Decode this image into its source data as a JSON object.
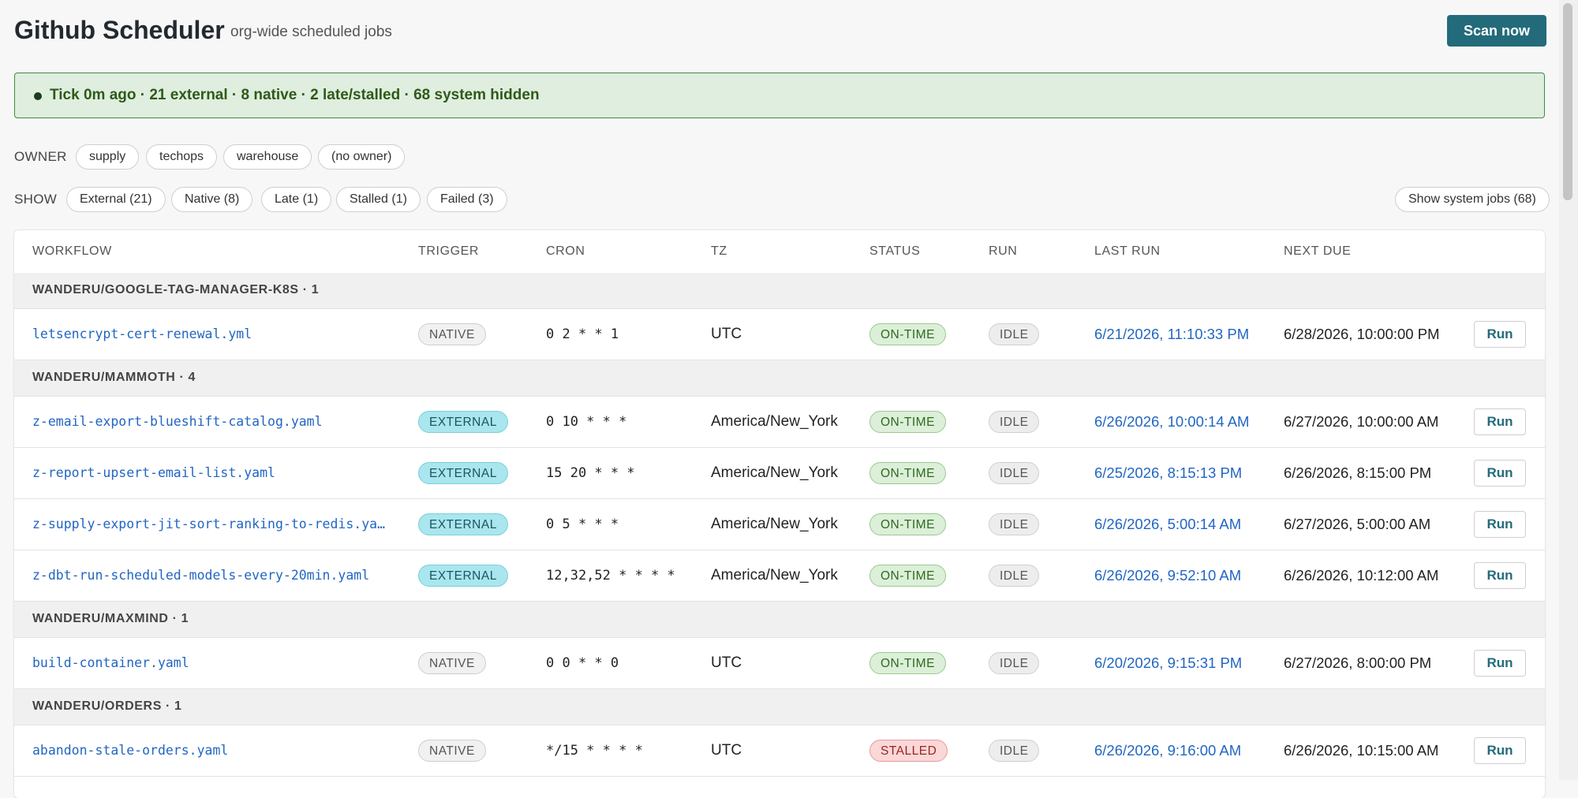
{
  "header": {
    "title": "Github Scheduler",
    "subtitle": "org-wide scheduled jobs",
    "scan_label": "Scan now"
  },
  "banner": {
    "text": "Tick 0m ago · 21 external · 8 native · 2 late/stalled · 68 system hidden",
    "color": "#3f8c3f"
  },
  "filters": {
    "owner_label": "OWNER",
    "owners": [
      "supply",
      "techops",
      "warehouse",
      "(no owner)"
    ],
    "show_label": "SHOW",
    "show": [
      "External (21)",
      "Native (8)",
      "Late (1)",
      "Stalled (1)",
      "Failed (3)"
    ],
    "system_jobs_label": "Show system jobs (68)"
  },
  "table": {
    "columns": [
      "WORKFLOW",
      "TRIGGER",
      "CRON",
      "TZ",
      "STATUS",
      "RUN",
      "LAST RUN",
      "NEXT DUE"
    ],
    "run_label": "Run",
    "groups": [
      {
        "label": "WANDERU/GOOGLE-TAG-MANAGER-K8S · 1",
        "rows": [
          {
            "workflow": "letsencrypt-cert-renewal.yml",
            "trigger": "NATIVE",
            "cron": "0 2 * * 1",
            "tz": "UTC",
            "status": "ON-TIME",
            "run": "IDLE",
            "last_run": "6/21/2026, 11:10:33 PM",
            "next_due": "6/28/2026, 10:00:00 PM"
          }
        ]
      },
      {
        "label": "WANDERU/MAMMOTH · 4",
        "rows": [
          {
            "workflow": "z-email-export-blueshift-catalog.yaml",
            "trigger": "EXTERNAL",
            "cron": "0 10 * * *",
            "tz": "America/New_York",
            "status": "ON-TIME",
            "run": "IDLE",
            "last_run": "6/26/2026, 10:00:14 AM",
            "next_due": "6/27/2026, 10:00:00 AM"
          },
          {
            "workflow": "z-report-upsert-email-list.yaml",
            "trigger": "EXTERNAL",
            "cron": "15 20 * * *",
            "tz": "America/New_York",
            "status": "ON-TIME",
            "run": "IDLE",
            "last_run": "6/25/2026, 8:15:13 PM",
            "next_due": "6/26/2026, 8:15:00 PM"
          },
          {
            "workflow": "z-supply-export-jit-sort-ranking-to-redis.yaml",
            "trigger": "EXTERNAL",
            "cron": "0 5 * * *",
            "tz": "America/New_York",
            "status": "ON-TIME",
            "run": "IDLE",
            "last_run": "6/26/2026, 5:00:14 AM",
            "next_due": "6/27/2026, 5:00:00 AM"
          },
          {
            "workflow": "z-dbt-run-scheduled-models-every-20min.yaml",
            "trigger": "EXTERNAL",
            "cron": "12,32,52 * * * *",
            "tz": "America/New_York",
            "status": "ON-TIME",
            "run": "IDLE",
            "last_run": "6/26/2026, 9:52:10 AM",
            "next_due": "6/26/2026, 10:12:00 AM"
          }
        ]
      },
      {
        "label": "WANDERU/MAXMIND · 1",
        "rows": [
          {
            "workflow": "build-container.yaml",
            "trigger": "NATIVE",
            "cron": "0 0 * * 0",
            "tz": "UTC",
            "status": "ON-TIME",
            "run": "IDLE",
            "last_run": "6/20/2026, 9:15:31 PM",
            "next_due": "6/27/2026, 8:00:00 PM"
          }
        ]
      },
      {
        "label": "WANDERU/ORDERS · 1",
        "rows": [
          {
            "workflow": "abandon-stale-orders.yaml",
            "trigger": "NATIVE",
            "cron": "*/15 * * * *",
            "tz": "UTC",
            "status": "STALLED",
            "run": "IDLE",
            "last_run": "6/26/2026, 9:16:00 AM",
            "next_due": "6/26/2026, 10:15:00 AM"
          }
        ]
      }
    ]
  },
  "colors": {
    "accent": "#236b7a",
    "link": "#2266c2",
    "on_time": "#2f6a21",
    "stalled": "#9a2424",
    "external": "#a9e6ee"
  }
}
